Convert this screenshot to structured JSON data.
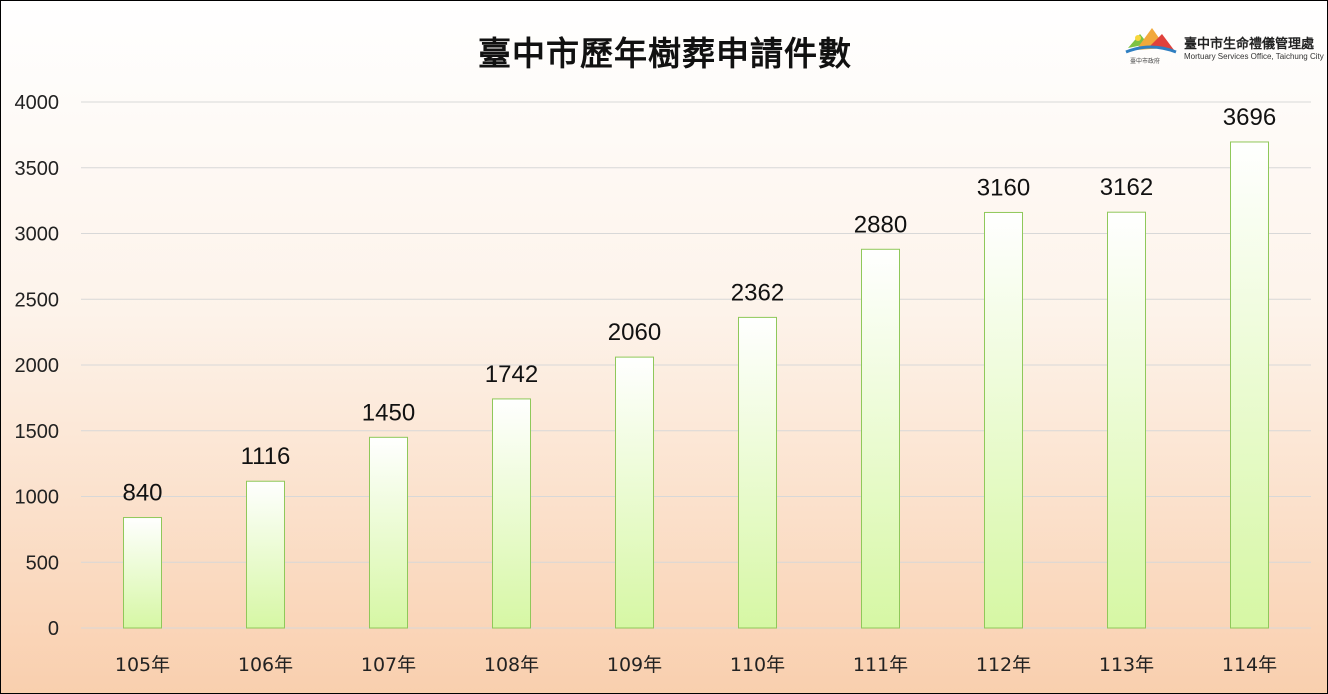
{
  "title": "臺中市歷年樹葬申請件數",
  "logo": {
    "name": "臺中市生命禮儀管理處",
    "subtitle": "Mortuary Services Office, Taichung City",
    "caption": "臺中市政府",
    "icon": "taichung-city-government-logo"
  },
  "chart_data": {
    "type": "bar",
    "title": "臺中市歷年樹葬申請件數",
    "categories": [
      "105年",
      "106年",
      "107年",
      "108年",
      "109年",
      "110年",
      "111年",
      "112年",
      "113年",
      "114年"
    ],
    "values": [
      840,
      1116,
      1450,
      1742,
      2060,
      2362,
      2880,
      3160,
      3162,
      3696
    ],
    "xlabel": "",
    "ylabel": "",
    "ylim": [
      0,
      4000
    ],
    "yticks": [
      0,
      500,
      1000,
      1500,
      2000,
      2500,
      3000,
      3500,
      4000
    ],
    "grid": true,
    "legend": "none",
    "colors": {
      "bar_top": "#ffffff",
      "bar_bottom": "#d6f7a4",
      "bar_border": "#8fc85a",
      "grid": "#d8d8d8"
    }
  }
}
